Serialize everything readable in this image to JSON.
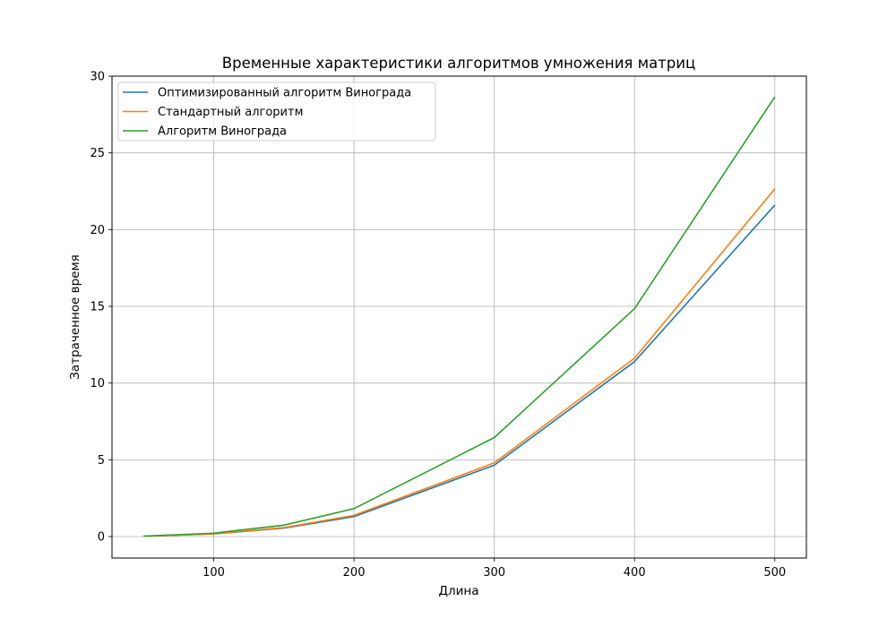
{
  "chart_data": {
    "type": "line",
    "title": "Временные характеристики алгоритмов умножения матриц",
    "xlabel": "Длина",
    "ylabel": "Затраченное время",
    "x": [
      50,
      100,
      150,
      200,
      300,
      400,
      500
    ],
    "xticks": [
      100,
      200,
      300,
      400,
      500
    ],
    "yticks": [
      0,
      5,
      10,
      15,
      20,
      25,
      30
    ],
    "xlim": [
      27.5,
      522.5
    ],
    "ylim": [
      -1.4,
      30
    ],
    "grid": true,
    "legend_position": "upper-left",
    "series": [
      {
        "name": "Оптимизированный алгоритм Винограда",
        "color": "#1f77b4",
        "values": [
          0.02,
          0.17,
          0.55,
          1.3,
          4.65,
          11.4,
          21.6
        ]
      },
      {
        "name": "Стандартный алгоритм",
        "color": "#ff7f0e",
        "values": [
          0.02,
          0.18,
          0.58,
          1.38,
          4.8,
          11.62,
          22.65
        ]
      },
      {
        "name": "Алгоритм Винограда",
        "color": "#2ca02c",
        "values": [
          0.03,
          0.22,
          0.74,
          1.82,
          6.45,
          14.85,
          28.65
        ]
      }
    ]
  }
}
